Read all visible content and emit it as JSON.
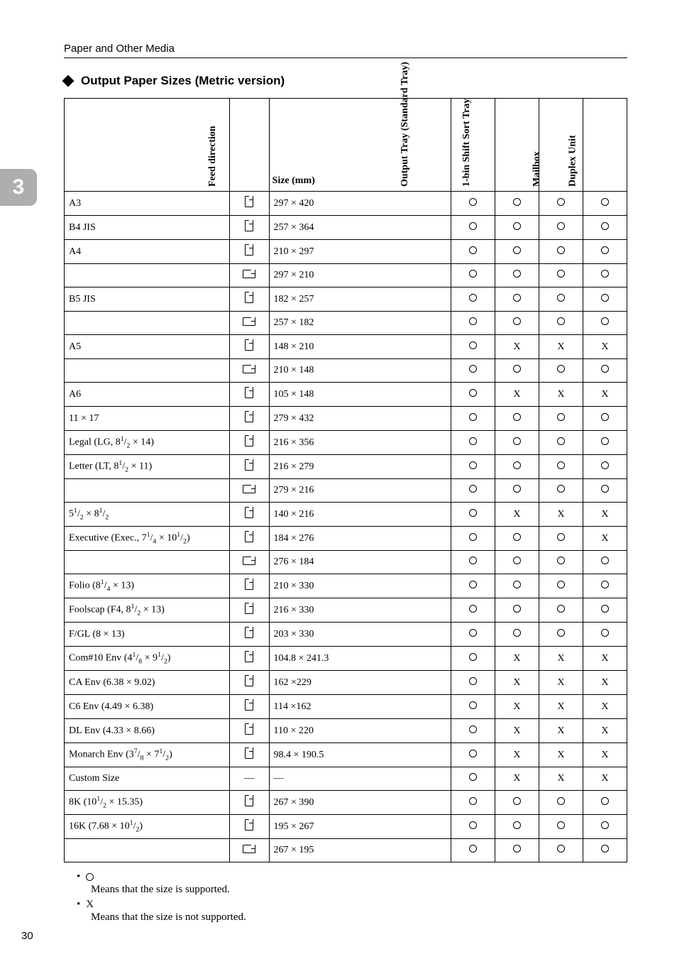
{
  "header": "Paper and Other Media",
  "section_title": "Output Paper Sizes (Metric version)",
  "side_tab": "3",
  "page_number": "30",
  "columns": {
    "name": "",
    "feed": "Feed direction",
    "size": "Size (mm)",
    "output": "Output Tray (Standard Tray)",
    "sort": "1-bin Shift Sort Tray",
    "mail": "Mailbox",
    "duplex": "Duplex Unit"
  },
  "rows": [
    {
      "name": "A3",
      "feed": "P",
      "size": "297 × 420",
      "out": "O",
      "sort": "O",
      "mail": "O",
      "dup": "O"
    },
    {
      "name": "B4 JIS",
      "feed": "P",
      "size": "257 × 364",
      "out": "O",
      "sort": "O",
      "mail": "O",
      "dup": "O"
    },
    {
      "name": "A4",
      "feed": "P",
      "size": "210 × 297",
      "out": "O",
      "sort": "O",
      "mail": "O",
      "dup": "O"
    },
    {
      "name": "",
      "feed": "L",
      "size": "297 × 210",
      "out": "O",
      "sort": "O",
      "mail": "O",
      "dup": "O"
    },
    {
      "name": "B5 JIS",
      "feed": "P",
      "size": "182 × 257",
      "out": "O",
      "sort": "O",
      "mail": "O",
      "dup": "O"
    },
    {
      "name": "",
      "feed": "L",
      "size": "257 × 182",
      "out": "O",
      "sort": "O",
      "mail": "O",
      "dup": "O"
    },
    {
      "name": "A5",
      "feed": "P",
      "size": "148 × 210",
      "out": "O",
      "sort": "X",
      "mail": "X",
      "dup": "X"
    },
    {
      "name": "",
      "feed": "L",
      "size": "210 × 148",
      "out": "O",
      "sort": "O",
      "mail": "O",
      "dup": "O"
    },
    {
      "name": "A6",
      "feed": "P",
      "size": "105 × 148",
      "out": "O",
      "sort": "X",
      "mail": "X",
      "dup": "X"
    },
    {
      "name": "11 × 17",
      "feed": "P",
      "size": "279 × 432",
      "out": "O",
      "sort": "O",
      "mail": "O",
      "dup": "O"
    },
    {
      "name": "Legal (LG, 8<sup>1</sup>/<sub>2</sub> × 14)",
      "feed": "P",
      "size": "216 × 356",
      "out": "O",
      "sort": "O",
      "mail": "O",
      "dup": "O"
    },
    {
      "name": "Letter (LT, 8<sup>1</sup>/<sub>2</sub> × 11)",
      "feed": "P",
      "size": "216 × 279",
      "out": "O",
      "sort": "O",
      "mail": "O",
      "dup": "O"
    },
    {
      "name": "",
      "feed": "L",
      "size": "279 × 216",
      "out": "O",
      "sort": "O",
      "mail": "O",
      "dup": "O"
    },
    {
      "name": "5<sup>1</sup>/<sub>2</sub> × 8<sup>1</sup>/<sub>2</sub>",
      "feed": "P",
      "size": "140 × 216",
      "out": "O",
      "sort": "X",
      "mail": "X",
      "dup": "X"
    },
    {
      "name": "Executive (Exec., 7<sup>1</sup>/<sub>4</sub> × 10<sup>1</sup>/<sub>2</sub>)",
      "feed": "P",
      "size": "184 × 276",
      "out": "O",
      "sort": "O",
      "mail": "O",
      "dup": "X"
    },
    {
      "name": "",
      "feed": "L",
      "size": "276 × 184",
      "out": "O",
      "sort": "O",
      "mail": "O",
      "dup": "O"
    },
    {
      "name": "Folio (8<sup>1</sup>/<sub>4</sub> × 13)",
      "feed": "P",
      "size": "210 × 330",
      "out": "O",
      "sort": "O",
      "mail": "O",
      "dup": "O"
    },
    {
      "name": "Foolscap (F4, 8<sup>1</sup>/<sub>2</sub> × 13)",
      "feed": "P",
      "size": "216 × 330",
      "out": "O",
      "sort": "O",
      "mail": "O",
      "dup": "O"
    },
    {
      "name": "F/GL (8 × 13)",
      "feed": "P",
      "size": "203 × 330",
      "out": "O",
      "sort": "O",
      "mail": "O",
      "dup": "O"
    },
    {
      "name": "Com#10 Env (4<sup>1</sup>/<sub>8</sub> × 9<sup>1</sup>/<sub>2</sub>)",
      "feed": "P",
      "size": "104.8 × 241.3",
      "out": "O",
      "sort": "X",
      "mail": "X",
      "dup": "X"
    },
    {
      "name": "CA Env (6.38 × 9.02)",
      "feed": "P",
      "size": "162 ×229",
      "out": "O",
      "sort": "X",
      "mail": "X",
      "dup": "X"
    },
    {
      "name": "C6 Env (4.49 × 6.38)",
      "feed": "P",
      "size": "114 ×162",
      "out": "O",
      "sort": "X",
      "mail": "X",
      "dup": "X"
    },
    {
      "name": "DL Env (4.33 × 8.66)",
      "feed": "P",
      "size": "110 × 220",
      "out": "O",
      "sort": "X",
      "mail": "X",
      "dup": "X"
    },
    {
      "name": "Monarch Env (3<sup>7</sup>/<sub>8</sub> × 7<sup>1</sup>/<sub>2</sub>)",
      "feed": "P",
      "size": "98.4 × 190.5",
      "out": "O",
      "sort": "X",
      "mail": "X",
      "dup": "X"
    },
    {
      "name": "Custom Size",
      "feed": "-",
      "size": "—",
      "out": "O",
      "sort": "X",
      "mail": "X",
      "dup": "X"
    },
    {
      "name": "8K (10<sup>1</sup>/<sub>2</sub> × 15.35)",
      "feed": "P",
      "size": "267 × 390",
      "out": "O",
      "sort": "O",
      "mail": "O",
      "dup": "O"
    },
    {
      "name": "16K (7.68 × 10<sup>1</sup>/<sub>2</sub>)",
      "feed": "P",
      "size": "195 × 267",
      "out": "O",
      "sort": "O",
      "mail": "O",
      "dup": "O"
    },
    {
      "name": "",
      "feed": "L",
      "size": "267 × 195",
      "out": "O",
      "sort": "O",
      "mail": "O",
      "dup": "O"
    }
  ],
  "notes": {
    "supported": "Means that the size is supported.",
    "not_supported": "Means that the size is not supported."
  }
}
